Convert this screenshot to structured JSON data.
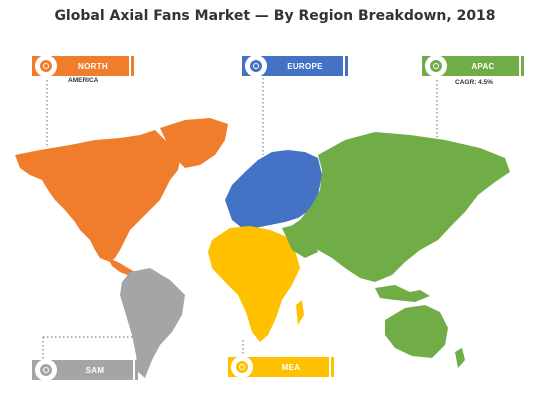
{
  "title": "Global Axial Fans Market — By Region Breakdown, 2018",
  "regions": {
    "north_america": {
      "label": "NORTH",
      "sublabel": "AMERICA",
      "color": "#f07d2b"
    },
    "europe": {
      "label": "EUROPE",
      "color": "#4472c4"
    },
    "apac": {
      "label": "APAC",
      "sublabel": "CAGR: 4.5%",
      "color": "#70ad47"
    },
    "mea": {
      "label": "MEA",
      "color": "#ffc000"
    },
    "sam": {
      "label": "SAM",
      "color": "#a5a5a5"
    }
  }
}
